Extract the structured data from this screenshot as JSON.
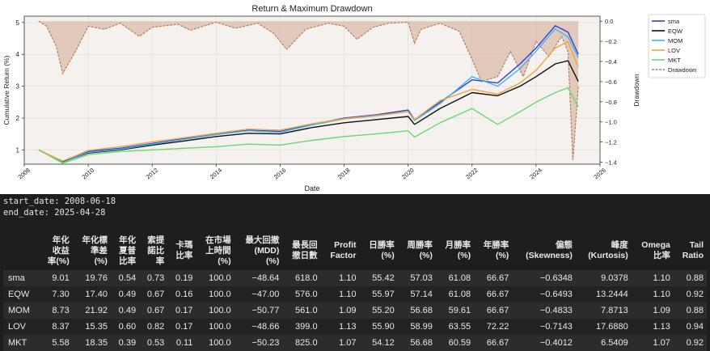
{
  "chart_data": {
    "type": "line",
    "title": "Return & Maximum Drawdown",
    "xlabel": "Date",
    "ylabel": "Cumulative Return (%)",
    "y2label": "Drawdown",
    "x_ticks": [
      "2008",
      "2010",
      "2012",
      "2014",
      "2016",
      "2018",
      "2020",
      "2022",
      "2024",
      "2026"
    ],
    "y_ticks": [
      "1",
      "2",
      "3",
      "4",
      "5"
    ],
    "y2_ticks": [
      "0.0",
      "−0.2",
      "−0.4",
      "−0.6",
      "−0.8",
      "−1.0",
      "−1.2",
      "−1.4"
    ],
    "xlim": [
      2008,
      2026
    ],
    "ylim": [
      0.55,
      5.2
    ],
    "y2lim": [
      -1.42,
      0.05
    ],
    "legend_position": "top-right",
    "grid": true,
    "colors": {
      "sma": "#2f3fd6",
      "EQW": "#111111",
      "MOM": "#44b6ea",
      "LOV": "#f0a43c",
      "MKT": "#6fd66f",
      "Drawdown": "#b08060"
    },
    "series": [
      {
        "name": "sma",
        "x": [
          2008.45,
          2009.2,
          2010.0,
          2011.0,
          2012.0,
          2013.0,
          2014.0,
          2015.0,
          2016.0,
          2017.0,
          2018.0,
          2019.0,
          2020.0,
          2020.2,
          2021.0,
          2022.0,
          2022.8,
          2023.5,
          2024.0,
          2024.6,
          2025.0,
          2025.32
        ],
        "values": [
          1.0,
          0.6,
          0.95,
          1.05,
          1.2,
          1.35,
          1.5,
          1.62,
          1.58,
          1.8,
          2.0,
          2.1,
          2.25,
          1.95,
          2.5,
          3.2,
          3.1,
          3.7,
          4.2,
          4.9,
          4.7,
          4.0
        ]
      },
      {
        "name": "EQW",
        "x": [
          2008.45,
          2009.2,
          2010.0,
          2011.0,
          2012.0,
          2013.0,
          2014.0,
          2015.0,
          2016.0,
          2017.0,
          2018.0,
          2019.0,
          2020.0,
          2020.2,
          2021.0,
          2022.0,
          2022.8,
          2023.5,
          2024.0,
          2024.6,
          2025.0,
          2025.32
        ],
        "values": [
          1.0,
          0.62,
          0.9,
          1.0,
          1.15,
          1.28,
          1.42,
          1.52,
          1.5,
          1.7,
          1.85,
          1.95,
          2.05,
          1.8,
          2.3,
          2.8,
          2.7,
          3.0,
          3.3,
          3.7,
          3.8,
          3.15
        ]
      },
      {
        "name": "MOM",
        "x": [
          2008.45,
          2009.2,
          2010.0,
          2011.0,
          2012.0,
          2013.0,
          2014.0,
          2015.0,
          2016.0,
          2017.0,
          2018.0,
          2019.0,
          2020.0,
          2020.2,
          2021.0,
          2022.0,
          2022.8,
          2023.5,
          2024.0,
          2024.6,
          2025.0,
          2025.32
        ],
        "values": [
          1.0,
          0.6,
          0.92,
          1.02,
          1.18,
          1.33,
          1.48,
          1.6,
          1.55,
          1.78,
          1.97,
          2.07,
          2.2,
          1.92,
          2.45,
          3.3,
          3.0,
          3.55,
          4.1,
          4.8,
          4.55,
          3.9
        ]
      },
      {
        "name": "LOV",
        "x": [
          2008.45,
          2009.2,
          2010.0,
          2011.0,
          2012.0,
          2013.0,
          2014.0,
          2015.0,
          2016.0,
          2017.0,
          2018.0,
          2019.0,
          2020.0,
          2020.2,
          2021.0,
          2022.0,
          2022.8,
          2023.5,
          2024.0,
          2024.6,
          2025.0,
          2025.32
        ],
        "values": [
          1.0,
          0.65,
          0.98,
          1.1,
          1.25,
          1.38,
          1.52,
          1.65,
          1.62,
          1.82,
          1.98,
          2.08,
          2.2,
          1.95,
          2.55,
          2.9,
          2.75,
          3.1,
          3.5,
          4.2,
          4.4,
          3.6
        ]
      },
      {
        "name": "MKT",
        "x": [
          2008.45,
          2009.2,
          2010.0,
          2011.0,
          2012.0,
          2013.0,
          2014.0,
          2015.0,
          2016.0,
          2017.0,
          2018.0,
          2019.0,
          2020.0,
          2020.2,
          2021.0,
          2022.0,
          2022.8,
          2023.5,
          2024.0,
          2024.6,
          2025.0,
          2025.32
        ],
        "values": [
          1.0,
          0.58,
          0.85,
          0.95,
          1.0,
          1.05,
          1.1,
          1.18,
          1.15,
          1.3,
          1.42,
          1.5,
          1.6,
          1.4,
          1.85,
          2.3,
          1.8,
          2.2,
          2.5,
          2.8,
          2.95,
          2.35
        ]
      },
      {
        "name": "Drawdown",
        "axis": "right",
        "x": [
          2008.45,
          2008.7,
          2009.0,
          2009.2,
          2009.6,
          2010.0,
          2010.5,
          2011.0,
          2011.6,
          2012.0,
          2012.8,
          2013.2,
          2014.0,
          2014.6,
          2015.3,
          2015.8,
          2016.2,
          2016.8,
          2017.5,
          2018.0,
          2018.4,
          2018.9,
          2019.4,
          2020.0,
          2020.2,
          2020.4,
          2021.0,
          2021.6,
          2022.0,
          2022.3,
          2022.8,
          2023.2,
          2023.6,
          2024.0,
          2024.4,
          2024.8,
          2025.0,
          2025.15,
          2025.32
        ],
        "values": [
          0.0,
          -0.05,
          -0.25,
          -0.52,
          -0.3,
          -0.05,
          -0.08,
          -0.02,
          -0.15,
          -0.06,
          -0.03,
          -0.09,
          -0.01,
          -0.07,
          -0.02,
          -0.12,
          -0.28,
          -0.08,
          -0.02,
          -0.05,
          -0.18,
          -0.06,
          -0.02,
          -0.01,
          -0.22,
          -0.08,
          -0.02,
          -0.1,
          -0.38,
          -0.6,
          -0.55,
          -0.3,
          -0.55,
          -0.2,
          -0.35,
          -0.15,
          -0.3,
          -1.38,
          -0.65
        ]
      }
    ]
  },
  "legend": [
    "sma",
    "EQW",
    "MOM",
    "LOV",
    "MKT",
    "Drawdown"
  ],
  "info": {
    "start": "start_date: 2008-06-18",
    "end": "end_date: 2025-04-28"
  },
  "table": {
    "headers": [
      "",
      "年化\n收益\n率(%)",
      "年化標\n準差\n(%)",
      "年化\n夏普\n比率",
      "索提\n諾比\n率",
      "卡瑪\n比率",
      "在市場\n上時間\n(%)",
      "最大回撤\n(MDD)\n(%)",
      "最長回\n撤日數",
      "Profit\nFactor",
      "日勝率\n(%)",
      "周勝率\n(%)",
      "月勝率\n(%)",
      "年勝率\n(%)",
      "偏態\n(Skewness)",
      "峰度\n(Kurtosis)",
      "Omega\n比率",
      "Tail\nRatio"
    ],
    "rows": [
      [
        "sma",
        "9.01",
        "19.76",
        "0.54",
        "0.73",
        "0.19",
        "100.0",
        "−48.64",
        "618.0",
        "1.10",
        "55.42",
        "57.03",
        "61.08",
        "66.67",
        "−0.6348",
        "9.0378",
        "1.10",
        "0.88"
      ],
      [
        "EQW",
        "7.30",
        "17.40",
        "0.49",
        "0.67",
        "0.16",
        "100.0",
        "−47.00",
        "576.0",
        "1.10",
        "55.97",
        "57.14",
        "61.08",
        "66.67",
        "−0.6493",
        "13.2444",
        "1.10",
        "0.92"
      ],
      [
        "MOM",
        "8.73",
        "21.92",
        "0.49",
        "0.67",
        "0.17",
        "100.0",
        "−50.77",
        "561.0",
        "1.09",
        "55.20",
        "56.68",
        "59.61",
        "66.67",
        "−0.4833",
        "7.8713",
        "1.09",
        "0.88"
      ],
      [
        "LOV",
        "8.37",
        "15.35",
        "0.60",
        "0.82",
        "0.17",
        "100.0",
        "−48.66",
        "399.0",
        "1.13",
        "55.90",
        "58.99",
        "63.55",
        "72.22",
        "−0.7143",
        "17.6880",
        "1.13",
        "0.94"
      ],
      [
        "MKT",
        "5.58",
        "18.35",
        "0.39",
        "0.53",
        "0.11",
        "100.0",
        "−50.23",
        "825.0",
        "1.07",
        "54.12",
        "56.68",
        "60.59",
        "66.67",
        "−0.4012",
        "6.5409",
        "1.07",
        "0.92"
      ]
    ]
  }
}
